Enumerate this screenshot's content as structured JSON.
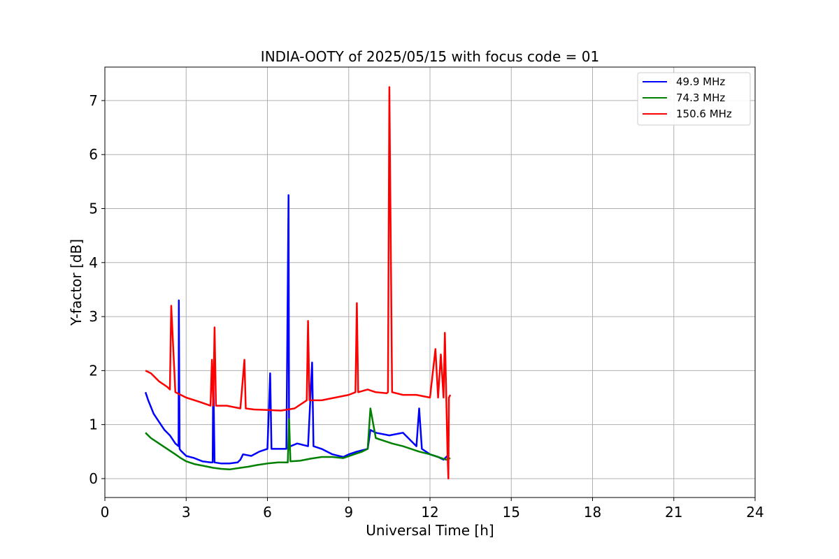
{
  "chart_data": {
    "type": "line",
    "title": "INDIA-OOTY of 2025/05/15 with focus code = 01",
    "xlabel": "Universal Time [h]",
    "ylabel": "Y-factor [dB]",
    "xlim": [
      0,
      24
    ],
    "ylim": [
      -0.35,
      7.62
    ],
    "xticks": [
      "0",
      "3",
      "6",
      "9",
      "12",
      "15",
      "18",
      "21",
      "24"
    ],
    "yticks": [
      "0",
      "1",
      "2",
      "3",
      "4",
      "5",
      "6",
      "7"
    ],
    "grid": true,
    "legend_position": "top-right",
    "series": [
      {
        "name": " 49.9 MHz",
        "color": "#0000ff",
        "x": [
          1.5,
          1.6,
          1.8,
          2.0,
          2.2,
          2.4,
          2.6,
          2.72,
          2.73,
          2.76,
          2.8,
          3.0,
          3.3,
          3.6,
          3.9,
          3.98,
          4.0,
          4.05,
          4.3,
          4.6,
          4.9,
          5.0,
          5.1,
          5.4,
          5.7,
          6.0,
          6.1,
          6.15,
          6.4,
          6.7,
          6.78,
          6.8,
          6.85,
          7.1,
          7.5,
          7.65,
          7.7,
          8.0,
          8.4,
          8.8,
          9.0,
          9.3,
          9.7,
          9.8,
          10.0,
          10.5,
          11.0,
          11.5,
          11.6,
          11.7,
          12.0,
          12.3,
          12.5,
          12.7
        ],
        "y": [
          1.6,
          1.45,
          1.2,
          1.05,
          0.9,
          0.8,
          0.65,
          0.6,
          3.3,
          0.55,
          0.52,
          0.42,
          0.38,
          0.32,
          0.3,
          0.3,
          2.0,
          0.3,
          0.28,
          0.28,
          0.3,
          0.35,
          0.45,
          0.42,
          0.5,
          0.55,
          1.95,
          0.55,
          0.55,
          0.55,
          5.25,
          0.55,
          0.6,
          0.65,
          0.6,
          2.15,
          0.6,
          0.55,
          0.45,
          0.4,
          0.45,
          0.5,
          0.55,
          0.9,
          0.85,
          0.8,
          0.85,
          0.6,
          1.3,
          0.55,
          0.45,
          0.4,
          0.35,
          0.45
        ]
      },
      {
        "name": " 74.3 MHz",
        "color": "#008000",
        "x": [
          1.5,
          1.7,
          2.0,
          2.3,
          2.6,
          2.8,
          3.0,
          3.3,
          3.6,
          4.0,
          4.3,
          4.6,
          5.0,
          5.3,
          5.6,
          6.0,
          6.4,
          6.75,
          6.8,
          6.85,
          7.2,
          7.6,
          8.0,
          8.4,
          8.8,
          9.2,
          9.5,
          9.7,
          9.8,
          10.0,
          10.3,
          10.6,
          11.0,
          11.3,
          11.6,
          12.0,
          12.3,
          12.6,
          12.75
        ],
        "y": [
          0.85,
          0.75,
          0.65,
          0.55,
          0.45,
          0.38,
          0.32,
          0.27,
          0.24,
          0.2,
          0.18,
          0.17,
          0.2,
          0.22,
          0.25,
          0.28,
          0.3,
          0.3,
          1.1,
          0.32,
          0.33,
          0.37,
          0.4,
          0.4,
          0.38,
          0.45,
          0.5,
          0.55,
          1.3,
          0.75,
          0.7,
          0.65,
          0.6,
          0.55,
          0.5,
          0.45,
          0.4,
          0.35,
          0.38
        ]
      },
      {
        "name": " 150.6 MHz",
        "color": "#ff0000",
        "x": [
          1.5,
          1.7,
          2.0,
          2.3,
          2.4,
          2.45,
          2.6,
          3.0,
          3.5,
          3.9,
          3.95,
          4.0,
          4.05,
          4.1,
          4.15,
          4.5,
          5.0,
          5.15,
          5.2,
          5.5,
          6.0,
          6.5,
          7.0,
          7.45,
          7.5,
          7.55,
          8.0,
          8.5,
          9.0,
          9.25,
          9.3,
          9.35,
          9.7,
          10.0,
          10.4,
          10.45,
          10.5,
          10.6,
          11.0,
          11.5,
          12.0,
          12.2,
          12.3,
          12.4,
          12.5,
          12.55,
          12.6,
          12.65,
          12.68,
          12.7,
          12.75
        ],
        "y": [
          2.0,
          1.95,
          1.8,
          1.7,
          1.65,
          3.2,
          1.6,
          1.5,
          1.42,
          1.35,
          2.2,
          1.35,
          2.8,
          1.35,
          1.35,
          1.35,
          1.3,
          2.2,
          1.3,
          1.28,
          1.27,
          1.26,
          1.3,
          1.45,
          2.92,
          1.45,
          1.45,
          1.5,
          1.55,
          1.6,
          3.25,
          1.6,
          1.65,
          1.6,
          1.58,
          1.6,
          7.25,
          1.6,
          1.55,
          1.55,
          1.5,
          2.4,
          1.5,
          2.3,
          1.5,
          2.7,
          1.5,
          0.4,
          0.0,
          1.5,
          1.55
        ]
      }
    ]
  }
}
